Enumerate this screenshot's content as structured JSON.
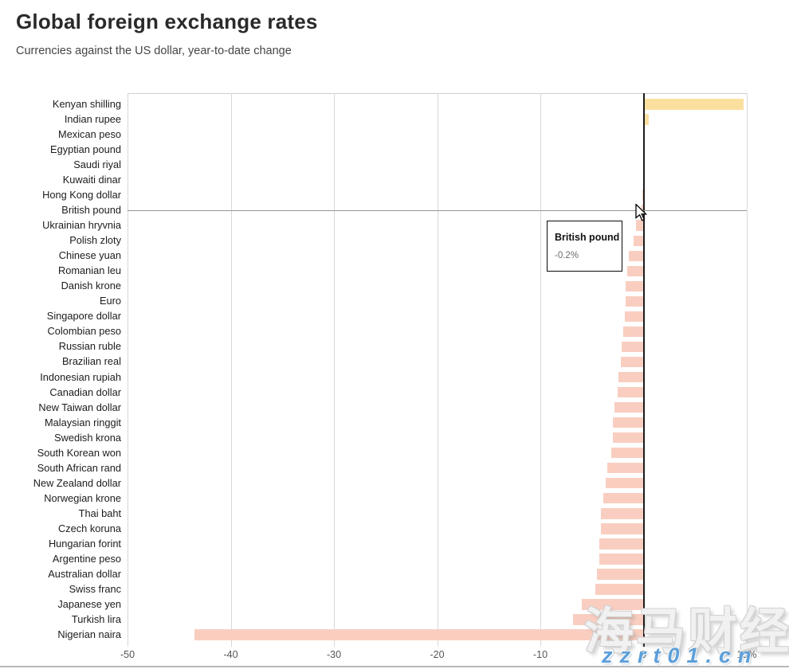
{
  "header": {
    "title": "Global foreign exchange rates",
    "subtitle": "Currencies against the US dollar, year-to-date change"
  },
  "chart_data": {
    "type": "bar",
    "orientation": "horizontal",
    "title": "Global foreign exchange rates",
    "subtitle": "Currencies against the US dollar, year-to-date change",
    "categories": [
      "Kenyan shilling",
      "Indian rupee",
      "Mexican peso",
      "Egyptian pound",
      "Saudi riyal",
      "Kuwaiti dinar",
      "Hong Kong dollar",
      "British pound",
      "Ukrainian hryvnia",
      "Polish zloty",
      "Chinese yuan",
      "Romanian leu",
      "Danish krone",
      "Euro",
      "Singapore dollar",
      "Colombian peso",
      "Russian ruble",
      "Brazilian real",
      "Indonesian rupiah",
      "Canadian dollar",
      "New Taiwan dollar",
      "Malaysian ringgit",
      "Swedish krona",
      "South Korean won",
      "South African rand",
      "New Zealand dollar",
      "Norwegian krone",
      "Thai baht",
      "Czech koruna",
      "Hungarian forint",
      "Argentine peso",
      "Australian dollar",
      "Swiss franc",
      "Japanese yen",
      "Turkish lira",
      "Nigerian naira"
    ],
    "values": [
      9.7,
      0.5,
      0.1,
      0,
      0,
      0,
      -0.1,
      -0.2,
      -0.7,
      -1.0,
      -1.4,
      -1.6,
      -1.7,
      -1.7,
      -1.8,
      -2.0,
      -2.1,
      -2.2,
      -2.4,
      -2.5,
      -2.8,
      -3.0,
      -3.0,
      -3.1,
      -3.5,
      -3.7,
      -3.9,
      -4.1,
      -4.1,
      -4.3,
      -4.3,
      -4.5,
      -4.7,
      -6.0,
      -6.8,
      -43.5
    ],
    "unit": "%",
    "xlim": [
      -50,
      10
    ],
    "x_ticks": [
      -50,
      -40,
      -30,
      -20,
      -10,
      0,
      10
    ],
    "x_tick_labels": [
      "-50",
      "-40",
      "-30",
      "-20",
      "-10",
      "0",
      "10%"
    ],
    "grid": "vertical",
    "legend": "none",
    "colors": {
      "negative": "#f9cec0",
      "positive": "#fbdf9e",
      "zero_line": "#1c1c1c"
    },
    "hovered_category": "British pound"
  },
  "tooltip": {
    "title": "British pound",
    "value": "-0.2%"
  },
  "watermarks": {
    "cjk": "海马财经",
    "site": "zzrt01.cn"
  }
}
